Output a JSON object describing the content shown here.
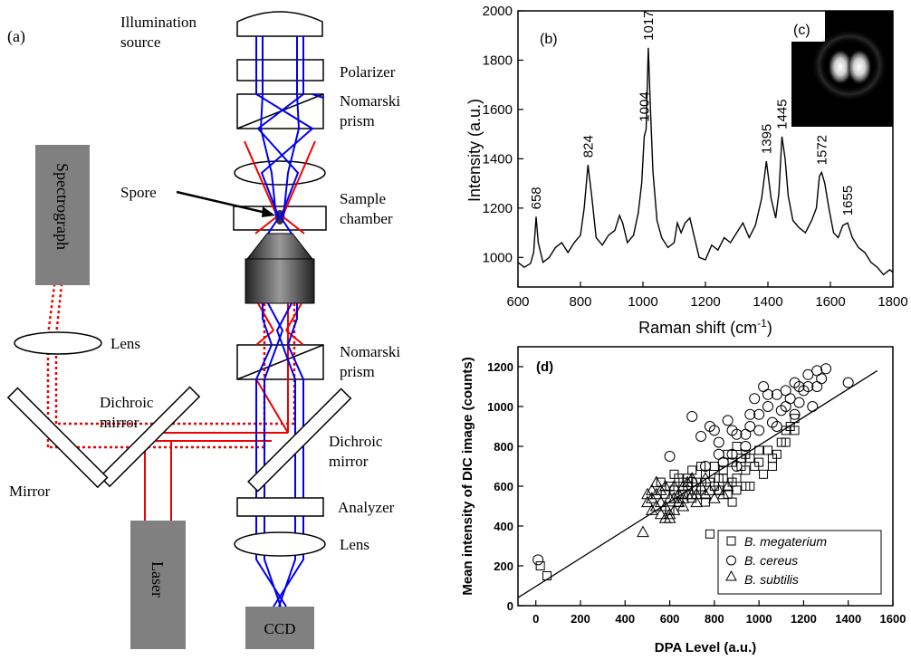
{
  "panel_a": {
    "label": "(a)",
    "illumination_line1": "Illumination",
    "illumination_line2": "source",
    "polarizer": "Polarizer",
    "nomarski_top_line1": "Nomarski",
    "nomarski_top_line2": "prism",
    "spore": "Spore",
    "sample_line1": "Sample",
    "sample_line2": "chamber",
    "spectrograph": "Spectrograph",
    "lens_left": "Lens",
    "nomarski_bottom_line1": "Nomarski",
    "nomarski_bottom_line2": "prism",
    "dichroic_left_line1": "Dichroic",
    "dichroic_left_line2": "mirror",
    "dichroic_right_line1": "Dichroic",
    "dichroic_right_line2": "mirror",
    "mirror": "Mirror",
    "analyzer": "Analyzer",
    "lens_bottom": "Lens",
    "laser": "Laser",
    "ccd": "CCD",
    "colors": {
      "blue_beam": "#0000ee",
      "red_beam": "#ee0000",
      "box_gray": "#808080",
      "objective_dark": "#333333"
    }
  },
  "chart_data": [
    {
      "type": "line",
      "panel_label": "(b)",
      "xlabel": "Raman shift (cm",
      "xlabel_sup": "-1",
      "xlabel_close": ")",
      "ylabel": "Intensity (a.u.)",
      "xlim": [
        600,
        1800
      ],
      "ylim": [
        880,
        2000
      ],
      "xticks": [
        600,
        800,
        1000,
        1200,
        1400,
        1600,
        1800
      ],
      "yticks": [
        1000,
        1200,
        1400,
        1600,
        1800,
        2000
      ],
      "peak_labels": [
        658,
        824,
        1004,
        1017,
        1395,
        1445,
        1572,
        1655
      ],
      "inset_label": "(c)",
      "series": [
        {
          "points": [
            [
              600,
              980
            ],
            [
              620,
              960
            ],
            [
              640,
              975
            ],
            [
              650,
              1020
            ],
            [
              658,
              1165
            ],
            [
              665,
              1060
            ],
            [
              680,
              980
            ],
            [
              700,
              1000
            ],
            [
              720,
              1040
            ],
            [
              740,
              1060
            ],
            [
              760,
              1020
            ],
            [
              780,
              1060
            ],
            [
              800,
              1090
            ],
            [
              812,
              1200
            ],
            [
              824,
              1375
            ],
            [
              836,
              1250
            ],
            [
              850,
              1080
            ],
            [
              870,
              1050
            ],
            [
              890,
              1090
            ],
            [
              910,
              1110
            ],
            [
              925,
              1170
            ],
            [
              935,
              1140
            ],
            [
              950,
              1060
            ],
            [
              970,
              1090
            ],
            [
              985,
              1180
            ],
            [
              996,
              1300
            ],
            [
              1004,
              1490
            ],
            [
              1010,
              1520
            ],
            [
              1017,
              1850
            ],
            [
              1024,
              1600
            ],
            [
              1032,
              1350
            ],
            [
              1045,
              1150
            ],
            [
              1060,
              1080
            ],
            [
              1080,
              1040
            ],
            [
              1100,
              1060
            ],
            [
              1110,
              1140
            ],
            [
              1122,
              1100
            ],
            [
              1135,
              1140
            ],
            [
              1150,
              1160
            ],
            [
              1165,
              1080
            ],
            [
              1180,
              1000
            ],
            [
              1200,
              990
            ],
            [
              1220,
              1050
            ],
            [
              1240,
              1030
            ],
            [
              1260,
              1080
            ],
            [
              1280,
              1060
            ],
            [
              1300,
              1100
            ],
            [
              1320,
              1140
            ],
            [
              1340,
              1080
            ],
            [
              1360,
              1130
            ],
            [
              1380,
              1240
            ],
            [
              1395,
              1390
            ],
            [
              1410,
              1240
            ],
            [
              1425,
              1160
            ],
            [
              1435,
              1260
            ],
            [
              1445,
              1490
            ],
            [
              1455,
              1400
            ],
            [
              1465,
              1250
            ],
            [
              1480,
              1150
            ],
            [
              1500,
              1120
            ],
            [
              1520,
              1100
            ],
            [
              1540,
              1150
            ],
            [
              1555,
              1200
            ],
            [
              1565,
              1330
            ],
            [
              1572,
              1345
            ],
            [
              1582,
              1300
            ],
            [
              1595,
              1200
            ],
            [
              1610,
              1100
            ],
            [
              1625,
              1080
            ],
            [
              1640,
              1130
            ],
            [
              1655,
              1140
            ],
            [
              1670,
              1080
            ],
            [
              1690,
              1040
            ],
            [
              1710,
              1020
            ],
            [
              1730,
              980
            ],
            [
              1750,
              960
            ],
            [
              1770,
              930
            ],
            [
              1790,
              950
            ],
            [
              1800,
              940
            ]
          ]
        }
      ]
    },
    {
      "type": "scatter",
      "panel_label": "(d)",
      "xlabel": "DPA Level (a.u.)",
      "ylabel": "Mean intensity of DIC image (counts)",
      "xlim": [
        -80,
        1600
      ],
      "ylim": [
        0,
        1300
      ],
      "xticks": [
        0,
        200,
        400,
        600,
        800,
        1000,
        1200,
        1400,
        1600
      ],
      "yticks": [
        0,
        200,
        400,
        600,
        800,
        1000,
        1200
      ],
      "fit_line": {
        "x": [
          -80,
          1530
        ],
        "y": [
          40,
          1180
        ]
      },
      "legend_position": "bottom-right",
      "series": [
        {
          "name": "B. megaterium",
          "marker": "square",
          "points": [
            [
              20,
              200
            ],
            [
              50,
              150
            ],
            [
              600,
              480
            ],
            [
              640,
              520
            ],
            [
              660,
              560
            ],
            [
              680,
              600
            ],
            [
              700,
              540
            ],
            [
              720,
              620
            ],
            [
              740,
              580
            ],
            [
              760,
              520
            ],
            [
              780,
              360
            ],
            [
              800,
              600
            ],
            [
              820,
              640
            ],
            [
              840,
              680
            ],
            [
              860,
              600
            ],
            [
              880,
              720
            ],
            [
              900,
              640
            ],
            [
              920,
              700
            ],
            [
              940,
              760
            ],
            [
              960,
              600
            ],
            [
              980,
              700
            ],
            [
              1000,
              720
            ],
            [
              1020,
              660
            ],
            [
              1040,
              780
            ],
            [
              1060,
              700
            ],
            [
              1080,
              760
            ],
            [
              1100,
              820
            ],
            [
              1120,
              880
            ],
            [
              1140,
              900
            ],
            [
              1160,
              940
            ],
            [
              860,
              560
            ],
            [
              880,
              620
            ],
            [
              900,
              580
            ],
            [
              920,
              740
            ],
            [
              940,
              680
            ],
            [
              820,
              580
            ],
            [
              760,
              660
            ],
            [
              700,
              680
            ],
            [
              640,
              640
            ],
            [
              600,
              600
            ],
            [
              560,
              620
            ],
            [
              620,
              580
            ],
            [
              680,
              640
            ],
            [
              740,
              700
            ],
            [
              800,
              700
            ],
            [
              860,
              760
            ],
            [
              900,
              800
            ],
            [
              960,
              740
            ],
            [
              1000,
              780
            ],
            [
              1060,
              740
            ],
            [
              1120,
              820
            ],
            [
              1160,
              880
            ],
            [
              840,
              640
            ],
            [
              780,
              620
            ],
            [
              720,
              580
            ],
            [
              660,
              620
            ],
            [
              620,
              660
            ],
            [
              580,
              560
            ],
            [
              880,
              520
            ],
            [
              940,
              600
            ]
          ]
        },
        {
          "name": "B. cereus",
          "marker": "circle",
          "points": [
            [
              10,
              230
            ],
            [
              600,
              750
            ],
            [
              700,
              950
            ],
            [
              740,
              850
            ],
            [
              780,
              900
            ],
            [
              800,
              880
            ],
            [
              820,
              820
            ],
            [
              840,
              720
            ],
            [
              860,
              930
            ],
            [
              880,
              880
            ],
            [
              900,
              700
            ],
            [
              940,
              860
            ],
            [
              960,
              900
            ],
            [
              980,
              1040
            ],
            [
              1000,
              960
            ],
            [
              1020,
              1100
            ],
            [
              1040,
              1000
            ],
            [
              1060,
              920
            ],
            [
              1080,
              1060
            ],
            [
              1100,
              980
            ],
            [
              1120,
              1080
            ],
            [
              1140,
              1040
            ],
            [
              1160,
              1120
            ],
            [
              1180,
              1020
            ],
            [
              1200,
              1080
            ],
            [
              1220,
              1100
            ],
            [
              1240,
              1000
            ],
            [
              1260,
              1180
            ],
            [
              1280,
              1140
            ],
            [
              1300,
              1190
            ],
            [
              1400,
              1120
            ],
            [
              1080,
              900
            ],
            [
              1000,
              880
            ],
            [
              940,
              800
            ],
            [
              880,
              760
            ],
            [
              1160,
              960
            ],
            [
              1220,
              1160
            ],
            [
              1040,
              1060
            ],
            [
              900,
              860
            ],
            [
              820,
              760
            ],
            [
              760,
              700
            ],
            [
              960,
              960
            ],
            [
              1120,
              1000
            ],
            [
              1180,
              1100
            ],
            [
              1260,
              1100
            ],
            [
              700,
              620
            ]
          ]
        },
        {
          "name": "B. subtilis",
          "marker": "triangle",
          "points": [
            [
              480,
              370
            ],
            [
              500,
              520
            ],
            [
              520,
              480
            ],
            [
              540,
              560
            ],
            [
              560,
              460
            ],
            [
              580,
              500
            ],
            [
              600,
              540
            ],
            [
              620,
              600
            ],
            [
              640,
              560
            ],
            [
              660,
              500
            ],
            [
              680,
              620
            ],
            [
              700,
              560
            ],
            [
              720,
              520
            ],
            [
              740,
              600
            ],
            [
              760,
              640
            ],
            [
              780,
              580
            ],
            [
              800,
              540
            ],
            [
              820,
              580
            ],
            [
              840,
              560
            ],
            [
              860,
              600
            ],
            [
              520,
              540
            ],
            [
              560,
              580
            ],
            [
              600,
              460
            ],
            [
              640,
              520
            ],
            [
              680,
              560
            ],
            [
              540,
              500
            ],
            [
              580,
              440
            ],
            [
              620,
              480
            ],
            [
              660,
              540
            ],
            [
              700,
              640
            ],
            [
              500,
              560
            ],
            [
              540,
              620
            ],
            [
              580,
              600
            ],
            [
              620,
              540
            ],
            [
              660,
              600
            ],
            [
              720,
              560
            ],
            [
              760,
              560
            ],
            [
              600,
              440
            ],
            [
              560,
              520
            ],
            [
              520,
              580
            ]
          ]
        }
      ]
    }
  ]
}
